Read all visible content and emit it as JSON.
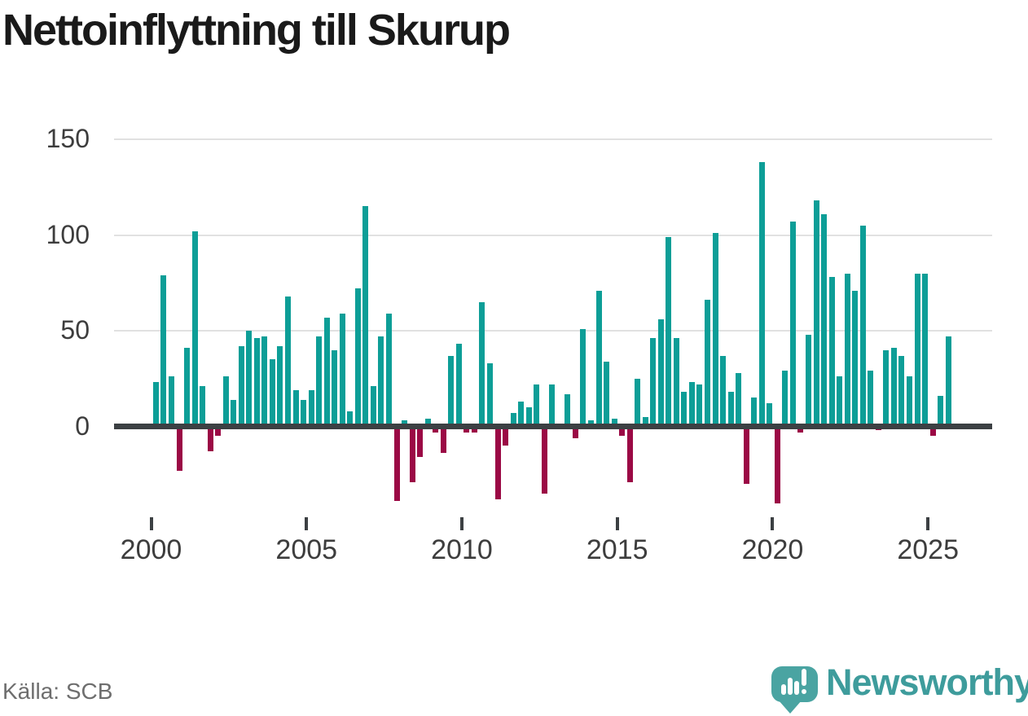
{
  "chart_data": {
    "type": "bar",
    "title": "Nettoinflyttning till Skurup",
    "frequency": "quarterly",
    "start": "2000-Q1",
    "end": "2025-Q3",
    "y_ticks": [
      0,
      50,
      100,
      150
    ],
    "x_ticks": [
      "2000",
      "2005",
      "2010",
      "2015",
      "2020",
      "2025"
    ],
    "ylim": [
      -45,
      155
    ],
    "grid": "horizontal",
    "colors": {
      "positive_bar": "#0d9e97",
      "negative_bar": "#9b0945",
      "axis": "#3c4043",
      "gridline": "#e1e1e1",
      "tick_label": "#3d3d3d",
      "title": "#1a1a1a",
      "brand": "#3e9c9c"
    },
    "years": [
      {
        "year": 2000,
        "values": [
          23,
          79,
          26,
          -23
        ]
      },
      {
        "year": 2001,
        "values": [
          41,
          102,
          21,
          -13
        ]
      },
      {
        "year": 2002,
        "values": [
          -5,
          26,
          14,
          42
        ]
      },
      {
        "year": 2003,
        "values": [
          50,
          46,
          47,
          35
        ]
      },
      {
        "year": 2004,
        "values": [
          42,
          68,
          19,
          14
        ]
      },
      {
        "year": 2005,
        "values": [
          19,
          47,
          57,
          40
        ]
      },
      {
        "year": 2006,
        "values": [
          59,
          8,
          72,
          115
        ]
      },
      {
        "year": 2007,
        "values": [
          21,
          47,
          59,
          -39
        ]
      },
      {
        "year": 2008,
        "values": [
          3,
          -29,
          -16,
          4
        ]
      },
      {
        "year": 2009,
        "values": [
          -3,
          -14,
          37,
          43
        ]
      },
      {
        "year": 2010,
        "values": [
          -3,
          -3,
          65,
          33
        ]
      },
      {
        "year": 2011,
        "values": [
          -38,
          -10,
          7,
          13
        ]
      },
      {
        "year": 2012,
        "values": [
          10,
          22,
          -35,
          22
        ]
      },
      {
        "year": 2013,
        "values": [
          0,
          17,
          -6,
          51
        ]
      },
      {
        "year": 2014,
        "values": [
          3,
          71,
          34,
          4
        ]
      },
      {
        "year": 2015,
        "values": [
          -5,
          -29,
          25,
          5
        ]
      },
      {
        "year": 2016,
        "values": [
          46,
          56,
          99,
          46
        ]
      },
      {
        "year": 2017,
        "values": [
          18,
          23,
          22,
          66
        ]
      },
      {
        "year": 2018,
        "values": [
          101,
          37,
          18,
          28
        ]
      },
      {
        "year": 2019,
        "values": [
          -30,
          15,
          138,
          12
        ]
      },
      {
        "year": 2020,
        "values": [
          -40,
          29,
          107,
          -3
        ]
      },
      {
        "year": 2021,
        "values": [
          48,
          118,
          111,
          78
        ]
      },
      {
        "year": 2022,
        "values": [
          26,
          80,
          71,
          105
        ]
      },
      {
        "year": 2023,
        "values": [
          29,
          -2,
          40,
          41
        ]
      },
      {
        "year": 2024,
        "values": [
          37,
          26,
          80,
          80
        ]
      },
      {
        "year": 2025,
        "values": [
          -5,
          16,
          47
        ]
      }
    ]
  },
  "footer": {
    "source": "Källa: SCB",
    "brand": "Newsworthy"
  }
}
